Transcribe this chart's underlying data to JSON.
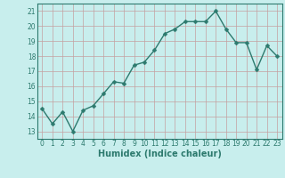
{
  "xlabel": "Humidex (Indice chaleur)",
  "x": [
    0,
    1,
    2,
    3,
    4,
    5,
    6,
    7,
    8,
    9,
    10,
    11,
    12,
    13,
    14,
    15,
    16,
    17,
    18,
    19,
    20,
    21,
    22,
    23
  ],
  "y": [
    14.5,
    13.5,
    14.3,
    13.0,
    14.4,
    14.7,
    15.5,
    16.3,
    16.2,
    17.4,
    17.6,
    18.4,
    19.5,
    19.8,
    20.3,
    20.3,
    20.3,
    21.0,
    19.8,
    18.9,
    18.9,
    17.1,
    18.7,
    18.0
  ],
  "line_color": "#2d7a6e",
  "marker_color": "#2d7a6e",
  "bg_color": "#c8eeed",
  "grid_color": "#c4a0a0",
  "axis_color": "#2d7a6e",
  "ylim": [
    12.5,
    21.5
  ],
  "xlim": [
    -0.5,
    23.5
  ],
  "yticks": [
    13,
    14,
    15,
    16,
    17,
    18,
    19,
    20,
    21
  ],
  "xticks": [
    0,
    1,
    2,
    3,
    4,
    5,
    6,
    7,
    8,
    9,
    10,
    11,
    12,
    13,
    14,
    15,
    16,
    17,
    18,
    19,
    20,
    21,
    22,
    23
  ],
  "tick_fontsize": 5.5,
  "label_fontsize": 7,
  "linewidth": 1.0,
  "markersize": 2.5
}
